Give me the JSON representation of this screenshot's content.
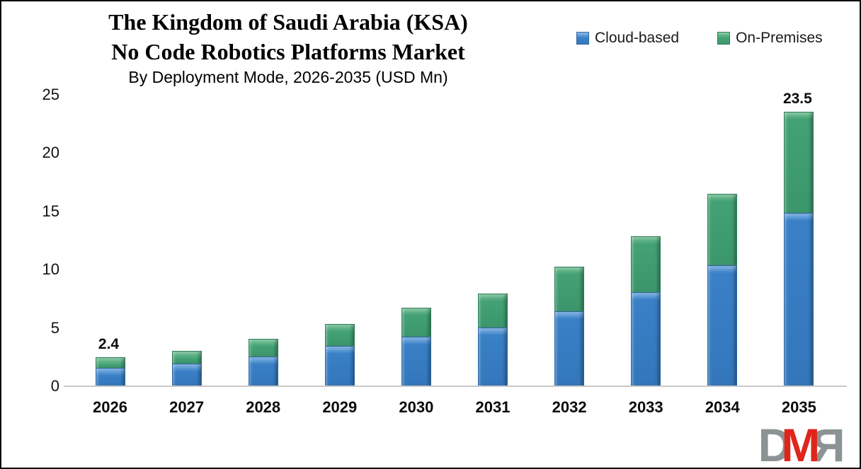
{
  "header": {
    "title_line1": "The Kingdom of Saudi Arabia (KSA)",
    "title_line2": "No Code Robotics Platforms Market",
    "subtitle": "By Deployment Mode, 2026-2035 (USD Mn)"
  },
  "legend": {
    "items": [
      {
        "label": "Cloud-based",
        "color": "#3A80C6"
      },
      {
        "label": "On-Premises",
        "color": "#43A175"
      }
    ]
  },
  "chart_data": {
    "type": "bar",
    "stacked": true,
    "title": "The Kingdom of Saudi Arabia (KSA) No Code Robotics Platforms Market",
    "subtitle": "By Deployment Mode, 2026-2035 (USD Mn)",
    "unit": "USD Mn",
    "categories": [
      "2026",
      "2027",
      "2028",
      "2029",
      "2030",
      "2031",
      "2032",
      "2033",
      "2034",
      "2035"
    ],
    "series": [
      {
        "name": "Cloud-based",
        "color": "#3A80C6",
        "values": [
          1.5,
          1.9,
          2.5,
          3.4,
          4.2,
          5.0,
          6.4,
          8.0,
          10.3,
          14.8
        ]
      },
      {
        "name": "On-Premises",
        "color": "#43A175",
        "values": [
          0.9,
          1.1,
          1.5,
          1.9,
          2.5,
          2.9,
          3.8,
          4.8,
          6.1,
          8.7
        ]
      }
    ],
    "totals": [
      2.4,
      3.0,
      4.0,
      5.3,
      6.7,
      7.9,
      10.2,
      12.8,
      16.4,
      23.5
    ],
    "data_labels": [
      "2.4",
      "",
      "",
      "",
      "",
      "",
      "",
      "",
      "",
      "23.5"
    ],
    "y_ticks": [
      0,
      5,
      10,
      15,
      20,
      25
    ],
    "ylim": [
      0,
      25
    ],
    "xlabel": "",
    "ylabel": "",
    "grid": false,
    "legend_position": "top-right"
  },
  "logo": {
    "name": "DMR",
    "letters": {
      "d": "D",
      "m": "M",
      "r": "R"
    },
    "colors": {
      "gray": "#8C9394",
      "red": "#E0251C"
    }
  }
}
